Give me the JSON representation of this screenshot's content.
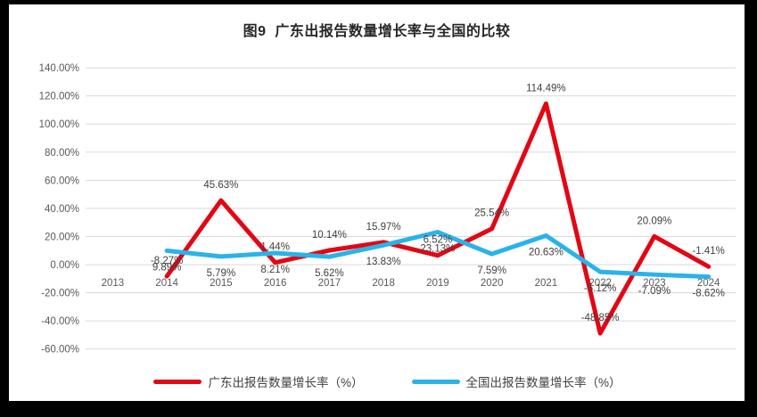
{
  "figure": {
    "background": "#000000",
    "panel_background": "#ffffff"
  },
  "chart_data": {
    "type": "line",
    "title": "图9  广东出报告数量增长率与全国的比较",
    "categories": [
      "2013",
      "2014",
      "2015",
      "2016",
      "2017",
      "2018",
      "2019",
      "2020",
      "2021",
      "2022",
      "2023",
      "2024"
    ],
    "y_tick_labels": [
      "140.00%",
      "120.00%",
      "100.00%",
      "80.00%",
      "60.00%",
      "40.00%",
      "20.00%",
      "0.00%",
      "-20.00%",
      "-40.00%",
      "-60.00%"
    ],
    "ylim": [
      -60,
      140
    ],
    "grid": "horizontal",
    "gridline_color": "#d9d9d9",
    "axis_text_color": "#595959",
    "label_text_color": "#404040",
    "legend_position": "bottom",
    "series": [
      {
        "name": "广东出报告数量增长率（%）",
        "slug": "guangdong-line",
        "color": "#e30613",
        "values": [
          null,
          -8.27,
          45.63,
          1.44,
          10.14,
          15.97,
          6.52,
          25.54,
          114.49,
          -48.85,
          20.09,
          -1.41
        ],
        "labels": [
          "",
          "-8.27%",
          "45.63%",
          "1.44%",
          "10.14%",
          "15.97%",
          "6.52%",
          "25.54%",
          "114.49%",
          "-48.85%",
          "20.09%",
          "-1.41%"
        ]
      },
      {
        "name": "全国出报告数量增长率（%）",
        "slug": "national-line",
        "color": "#2ab3e8",
        "values": [
          null,
          9.89,
          5.79,
          8.21,
          5.62,
          13.83,
          23.13,
          7.59,
          20.63,
          -5.12,
          -7.09,
          -8.62
        ],
        "labels": [
          "",
          "9.89%",
          "5.79%",
          "8.21%",
          "5.62%",
          "13.83%",
          "23.13%",
          "7.59%",
          "20.63%",
          "-5.12%",
          "-7.09%",
          "-8.62%"
        ]
      }
    ]
  }
}
